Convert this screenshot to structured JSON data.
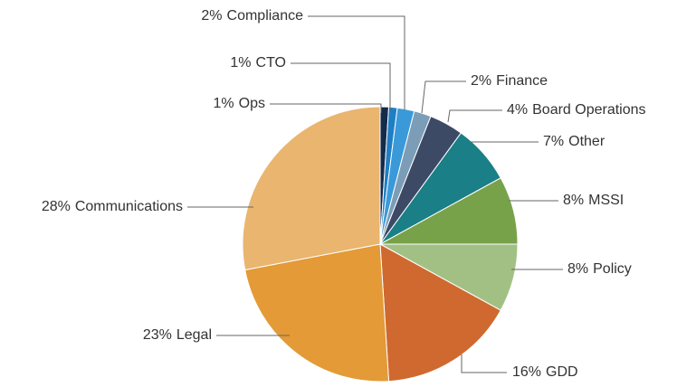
{
  "chart_data": {
    "type": "pie",
    "categories": [
      "Ops",
      "CTO",
      "Compliance",
      "Finance",
      "Board Operations",
      "Other",
      "MSSI",
      "Policy",
      "GDD",
      "Legal",
      "Communications"
    ],
    "values": [
      1,
      1,
      2,
      2,
      4,
      7,
      8,
      8,
      16,
      23,
      28
    ],
    "value_labels": [
      "1%",
      "1%",
      "2%",
      "2%",
      "4%",
      "7%",
      "8%",
      "8%",
      "16%",
      "23%",
      "28%"
    ],
    "colors": [
      "#142b4c",
      "#1f7fc4",
      "#3a9ad9",
      "#7c9db8",
      "#3d4a66",
      "#1a7f86",
      "#78a24a",
      "#a3c084",
      "#cf6930",
      "#e39a37",
      "#e9b56f"
    ]
  }
}
